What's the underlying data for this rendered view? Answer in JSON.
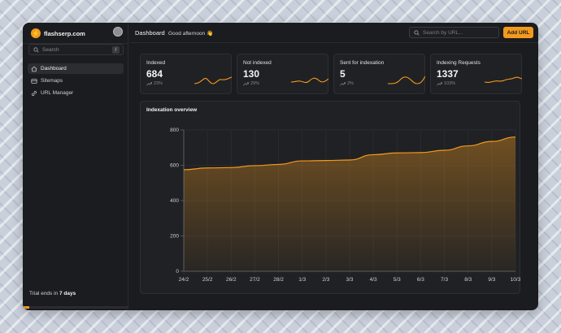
{
  "brand": {
    "name": "flashserp.com",
    "logo_glyph": "⚡"
  },
  "sidebar": {
    "search_placeholder": "Search",
    "search_shortcut": "/",
    "items": [
      {
        "label": "Dashboard",
        "icon": "home-icon",
        "active": true
      },
      {
        "label": "Sitemaps",
        "icon": "sitemap-icon",
        "active": false
      },
      {
        "label": "URL Manager",
        "icon": "link-icon",
        "active": false
      }
    ],
    "trial": {
      "prefix": "Trial ends in ",
      "days": "7 days",
      "progress": 0.06
    }
  },
  "topbar": {
    "title": "Dashboard",
    "greeting": "Good afternoon 👋",
    "search_placeholder": "Search by URL...",
    "add_button": "Add URL"
  },
  "stats": [
    {
      "label": "Indexed",
      "value": "684",
      "delta": "23%"
    },
    {
      "label": "Not indexed",
      "value": "130",
      "delta": "29%"
    },
    {
      "label": "Sent for indexation",
      "value": "5",
      "delta": "2%"
    },
    {
      "label": "Indexing Requests",
      "value": "1337",
      "delta": "103%"
    }
  ],
  "colors": {
    "accent": "#f39a1e",
    "background": "#1b1c1f",
    "card": "#202124"
  },
  "chart_data": {
    "type": "area",
    "title": "Indexation overview",
    "categories": [
      "24/2",
      "25/2",
      "26/2",
      "27/2",
      "28/2",
      "1/3",
      "2/3",
      "3/3",
      "4/3",
      "5/3",
      "6/3",
      "7/3",
      "8/3",
      "9/3",
      "10/3"
    ],
    "values": [
      575,
      585,
      587,
      598,
      605,
      625,
      627,
      630,
      660,
      670,
      672,
      685,
      710,
      735,
      760
    ],
    "ylim": [
      0,
      800
    ],
    "yticks": [
      0,
      200,
      400,
      600,
      800
    ],
    "grid": true,
    "xlabel": "",
    "ylabel": ""
  }
}
